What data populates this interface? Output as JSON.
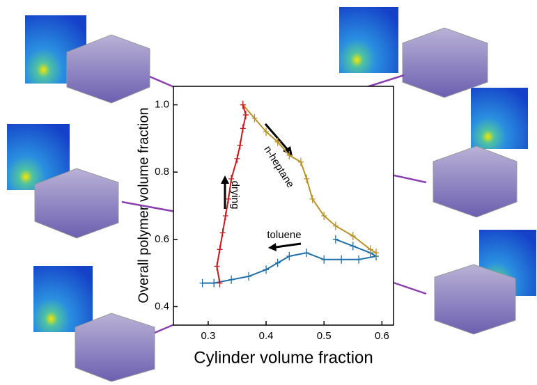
{
  "chart_data": {
    "type": "scatter",
    "x_label": "Cylinder volume fraction",
    "y_label": "Overall polymer volume fraction",
    "xlim": [
      0.24,
      0.62
    ],
    "ylim": [
      0.345,
      1.055
    ],
    "xticks": [
      0.3,
      0.4,
      0.5,
      0.6
    ],
    "yticks": [
      0.4,
      0.6,
      0.8,
      {
        "value": 1,
        "label": "1.0"
      }
    ],
    "annotations": [
      "drying",
      "n-heptane",
      "toluene"
    ],
    "series": [
      {
        "color": "#1f6fa8",
        "x": [
          0.52,
          0.55,
          0.58,
          0.59,
          0.56,
          0.53,
          0.5,
          0.47,
          0.44,
          0.42,
          0.4,
          0.37,
          0.34,
          0.31,
          0.29
        ],
        "values": [
          0.6,
          0.58,
          0.56,
          0.55,
          0.54,
          0.54,
          0.54,
          0.56,
          0.55,
          0.53,
          0.51,
          0.49,
          0.48,
          0.47,
          0.47
        ]
      },
      {
        "color": "#b8922a",
        "x": [
          0.36,
          0.38,
          0.4,
          0.42,
          0.44,
          0.46,
          0.47,
          0.48,
          0.5,
          0.52,
          0.55,
          0.58,
          0.59
        ],
        "values": [
          1.0,
          0.96,
          0.92,
          0.89,
          0.85,
          0.83,
          0.78,
          0.72,
          0.67,
          0.64,
          0.61,
          0.57,
          0.56
        ]
      },
      {
        "color": "#c8191e",
        "x": [
          0.32,
          0.315,
          0.32,
          0.325,
          0.33,
          0.335,
          0.34,
          0.35,
          0.355,
          0.36,
          0.365,
          0.36
        ],
        "values": [
          0.47,
          0.52,
          0.57,
          0.62,
          0.67,
          0.72,
          0.78,
          0.84,
          0.88,
          0.93,
          0.97,
          1.0
        ]
      }
    ]
  }
}
